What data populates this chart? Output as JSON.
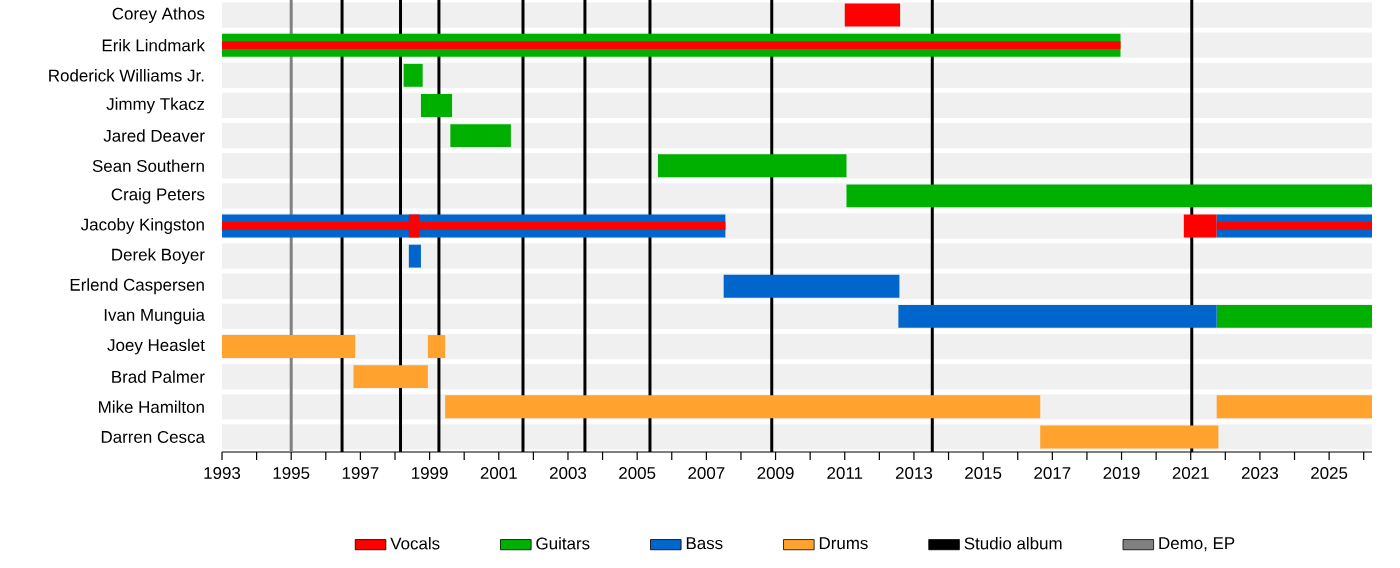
{
  "chart_data": {
    "type": "bar",
    "orientation": "horizontal",
    "categories": [
      "Corey Athos",
      "Erik Lindmark",
      "Roderick Williams Jr.",
      "Jimmy Tkacz",
      "Jared Deaver",
      "Sean Southern",
      "Craig Peters",
      "Jacoby Kingston",
      "Derek Boyer",
      "Erlend Caspersen",
      "Ivan Munguia",
      "Joey Heaslet",
      "Brad Palmer",
      "Mike Hamilton",
      "Darren Cesca"
    ],
    "series": [
      {
        "name": "Vocals",
        "color": "#ff0000",
        "base": [
          2011.0,
          1993,
          null,
          null,
          null,
          null,
          null,
          1993,
          null,
          null,
          null,
          null,
          null,
          null,
          null
        ],
        "values": [
          1.6,
          25.97,
          null,
          null,
          null,
          null,
          null,
          14.55,
          null,
          null,
          null,
          null,
          null,
          null,
          null
        ]
      },
      {
        "color": "#ff0000",
        "base": [
          null,
          null,
          null,
          null,
          null,
          null,
          null,
          1998.4,
          null,
          null,
          null,
          null,
          null,
          null,
          null
        ],
        "values": [
          null,
          null,
          null,
          null,
          null,
          null,
          null,
          0.3,
          null,
          null,
          null,
          null,
          null,
          null,
          null
        ]
      },
      {
        "color": "#ff0000",
        "base": [
          null,
          null,
          null,
          null,
          null,
          null,
          null,
          2020.8,
          null,
          null,
          null,
          null,
          null,
          null,
          null
        ],
        "values": [
          null,
          null,
          null,
          null,
          null,
          null,
          null,
          0.95,
          null,
          null,
          null,
          null,
          null,
          null,
          null
        ]
      },
      {
        "color": "#ff0000",
        "base": [
          null,
          null,
          null,
          null,
          null,
          null,
          null,
          2021.75,
          null,
          null,
          null,
          null,
          null,
          null,
          null
        ],
        "values": [
          null,
          null,
          null,
          null,
          null,
          null,
          null,
          4.49,
          null,
          null,
          null,
          null,
          null,
          null,
          null
        ]
      },
      {
        "name": "Guitars",
        "color": "#00b000",
        "base": [
          null,
          1993,
          1998.25,
          1998.75,
          1999.6,
          2005.6,
          2011.05,
          null,
          null,
          null,
          2021.75,
          null,
          null,
          null,
          null
        ],
        "values": [
          null,
          25.97,
          0.55,
          0.9,
          1.75,
          5.45,
          15.19,
          null,
          null,
          null,
          4.49,
          null,
          null,
          null,
          null
        ]
      },
      {
        "name": "Bass",
        "color": "#0066cc",
        "base": [
          null,
          null,
          null,
          null,
          null,
          null,
          null,
          1993,
          1998.4,
          2007.5,
          2012.55,
          null,
          null,
          null,
          null
        ],
        "values": [
          null,
          null,
          null,
          null,
          null,
          null,
          null,
          14.55,
          0.35,
          5.08,
          9.2,
          null,
          null,
          null,
          null
        ]
      },
      {
        "name": "Drums",
        "color": "#ffa22e",
        "base": [
          null,
          null,
          null,
          null,
          null,
          null,
          null,
          null,
          null,
          null,
          null,
          1993,
          1996.8,
          1999.45,
          2016.65
        ],
        "values": [
          null,
          null,
          null,
          null,
          null,
          null,
          null,
          null,
          null,
          null,
          null,
          3.85,
          2.15,
          17.2,
          5.15
        ]
      },
      {
        "color": "#0066cc",
        "base": [
          null,
          null,
          null,
          null,
          null,
          null,
          null,
          2021.75,
          null,
          null,
          null,
          null,
          null,
          null,
          null
        ],
        "values": [
          null,
          null,
          null,
          null,
          null,
          null,
          null,
          4.49,
          null,
          null,
          null,
          null,
          null,
          null,
          null
        ]
      },
      {
        "color": "#ffa22e",
        "base": [
          null,
          null,
          null,
          null,
          null,
          null,
          null,
          null,
          null,
          null,
          null,
          1998.95,
          null,
          2021.75,
          null
        ],
        "values": [
          null,
          null,
          null,
          null,
          null,
          null,
          null,
          null,
          null,
          null,
          null,
          0.5,
          null,
          4.49,
          null
        ]
      }
    ],
    "ref_lines": [
      {
        "axis": "x",
        "value": 1996.47,
        "label": "Studio album",
        "color": "#000000"
      },
      {
        "axis": "x",
        "value": 1995.0,
        "label": "Demo, EP",
        "color": "#808080"
      },
      {
        "axis": "x",
        "value": 1998.16,
        "color": "#000000"
      },
      {
        "axis": "x",
        "value": 1999.27,
        "color": "#000000"
      },
      {
        "axis": "x",
        "value": 2001.7,
        "color": "#000000"
      },
      {
        "axis": "x",
        "value": 2003.49,
        "color": "#000000"
      },
      {
        "axis": "x",
        "value": 2005.37,
        "color": "#000000"
      },
      {
        "axis": "x",
        "value": 2008.89,
        "color": "#000000"
      },
      {
        "axis": "x",
        "value": 2013.53,
        "color": "#000000"
      },
      {
        "axis": "x",
        "value": 2021.03,
        "color": "#000000"
      }
    ],
    "xlim": [
      1993,
      2026.24
    ],
    "xticks": [
      1993,
      {
        "value": 1994,
        "label": null
      },
      1995,
      {
        "value": 1996,
        "label": null
      },
      1997,
      {
        "value": 1998,
        "label": null
      },
      1999,
      {
        "value": 2000,
        "label": null
      },
      2001,
      {
        "value": 2002,
        "label": null
      },
      2003,
      {
        "value": 2004,
        "label": null
      },
      2005,
      {
        "value": 2006,
        "label": null
      },
      2007,
      {
        "value": 2008,
        "label": null
      },
      2009,
      {
        "value": 2010,
        "label": null
      },
      2011,
      {
        "value": 2012,
        "label": null
      },
      2013,
      {
        "value": 2014,
        "label": null
      },
      2015,
      {
        "value": 2016,
        "label": null
      },
      2017,
      {
        "value": 2018,
        "label": null
      },
      2019,
      {
        "value": 2020,
        "label": null
      },
      2021,
      {
        "value": 2022,
        "label": null
      },
      2023,
      {
        "value": 2024,
        "label": null
      },
      2025,
      {
        "value": 2026,
        "label": null
      }
    ],
    "legend": "bottom"
  }
}
